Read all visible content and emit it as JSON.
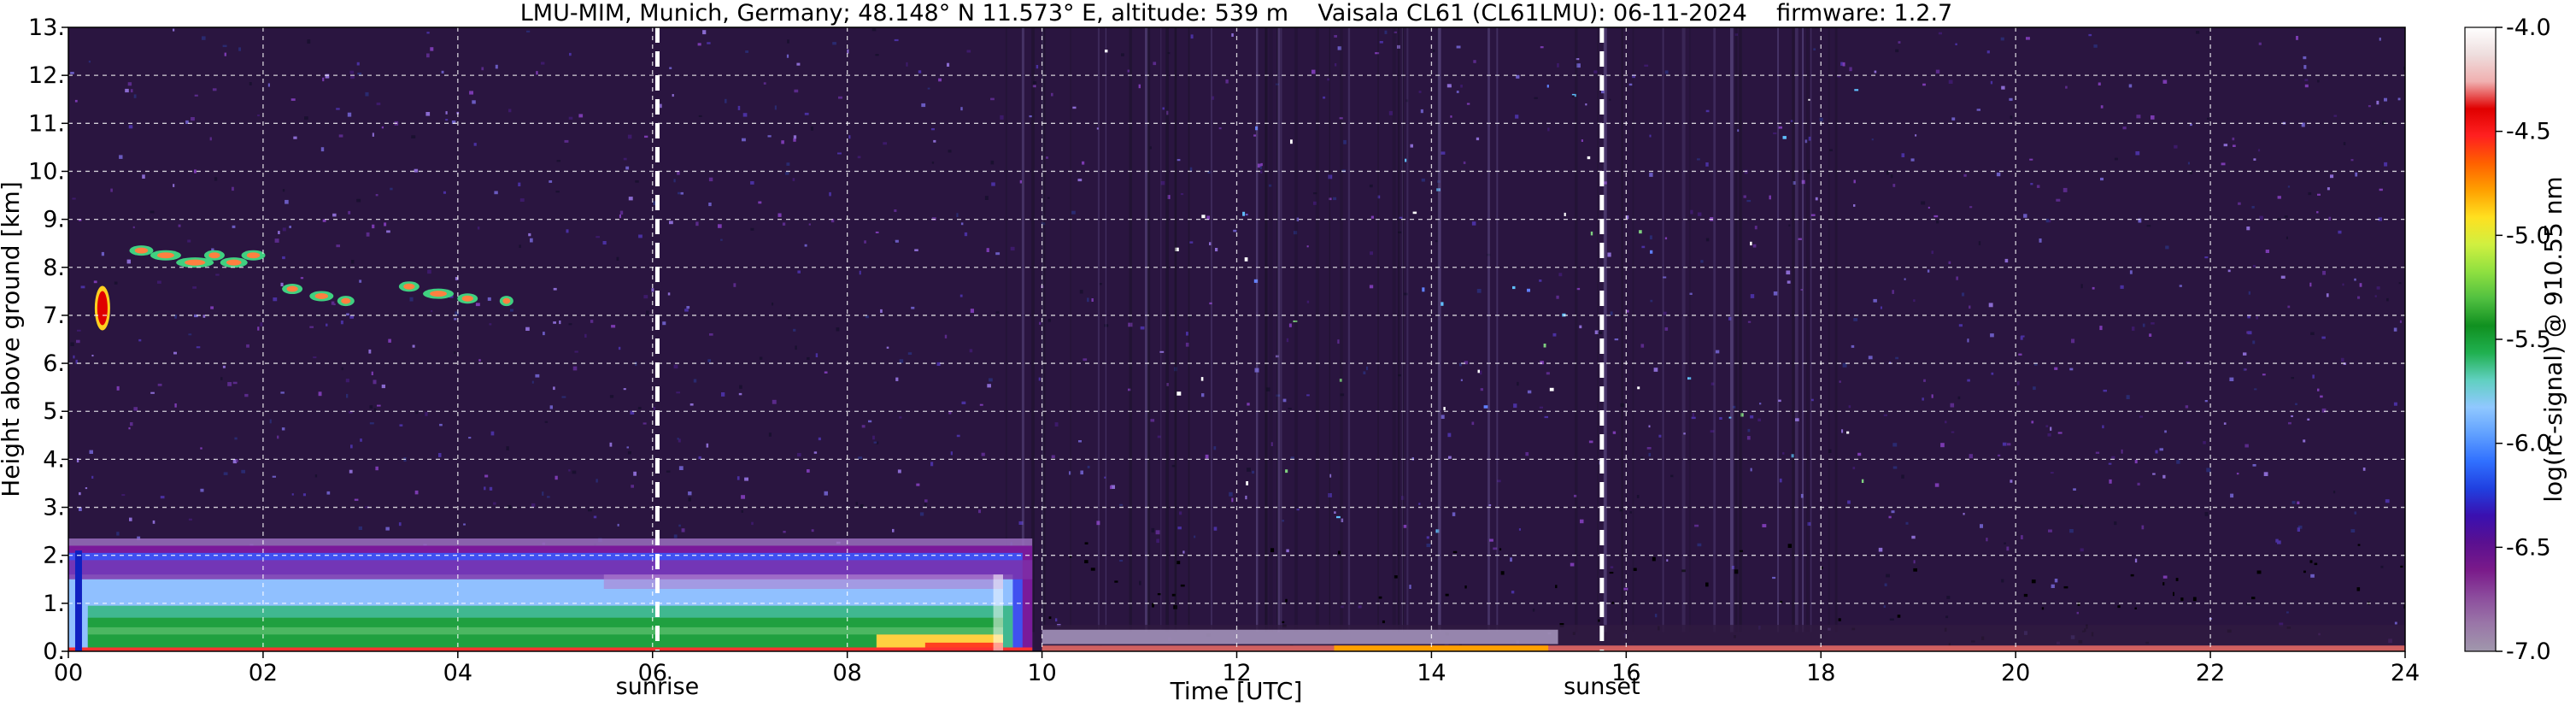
{
  "title": "LMU-MIM, Munich, Germany; 48.148° N 11.573° E, altitude: 539 m    Vaisala CL61 (CL61LMU): 06-11-2024    firmware: 1.2.7",
  "chart_data": {
    "type": "heatmap",
    "title": "LMU-MIM, Munich, Germany; 48.148° N 11.573° E, altitude: 539 m    Vaisala CL61 (CL61LMU): 06-11-2024    firmware: 1.2.7",
    "xlabel": "Time [UTC]",
    "ylabel": "Height above ground [km]",
    "xlim": [
      0,
      24
    ],
    "ylim": [
      0,
      13
    ],
    "x_ticks": [
      0,
      2,
      4,
      6,
      8,
      10,
      12,
      14,
      16,
      18,
      20,
      22,
      24
    ],
    "x_tick_labels": [
      "00",
      "02",
      "04",
      "06",
      "08",
      "10",
      "12",
      "14",
      "16",
      "18",
      "20",
      "22",
      "24"
    ],
    "y_ticks": [
      0,
      1,
      2,
      3,
      4,
      5,
      6,
      7,
      8,
      9,
      10,
      11,
      12,
      13
    ],
    "y_tick_labels": [
      "0.",
      "1.",
      "2.",
      "3.",
      "4.",
      "5.",
      "6.",
      "7.",
      "8.",
      "9.",
      "10.",
      "11.",
      "12.",
      "13."
    ],
    "grid": true,
    "colorbar": {
      "label": "log(rc-signal) @ 910.55 nm",
      "range": [
        -7.0,
        -4.0
      ],
      "ticks": [
        -7.0,
        -6.5,
        -6.0,
        -5.5,
        -5.0,
        -4.5,
        -4.0
      ],
      "tick_labels": [
        "-7.0",
        "-6.5",
        "-6.0",
        "-5.5",
        "-5.0",
        "-4.5",
        "-4.0"
      ],
      "colors": [
        "#a097ac",
        "#9a77a8",
        "#8c4c9d",
        "#7a1a8a",
        "#5a1090",
        "#3a10b0",
        "#2040e0",
        "#3070ff",
        "#60a0ff",
        "#90c8ff",
        "#60d0c0",
        "#20b050",
        "#109020",
        "#50c040",
        "#90e040",
        "#d0f040",
        "#ffe020",
        "#ffa000",
        "#ff6000",
        "#ff2020",
        "#e00000",
        "#f0b0b0",
        "#eedede",
        "#ffffff"
      ]
    },
    "annotations": [
      {
        "text": "sunrise",
        "x": 6.05,
        "style": "white dashed vertical line"
      },
      {
        "text": "sunset",
        "x": 15.75,
        "style": "white dashed vertical line"
      }
    ],
    "features": [
      {
        "name": "boundary layer aerosol",
        "x_range": [
          0,
          9.9
        ],
        "y_range": [
          0,
          2.3
        ]
      },
      {
        "name": "cirrus patch",
        "x_range": [
          0.2,
          0.45
        ],
        "y_range": [
          6.7,
          7.6
        ]
      },
      {
        "name": "cirrus band",
        "x_range": [
          0.4,
          4.6
        ],
        "y_range": [
          7.0,
          8.5
        ]
      },
      {
        "name": "low-level layer",
        "x_range": [
          10,
          24
        ],
        "y_range": [
          0,
          0.5
        ]
      }
    ]
  }
}
